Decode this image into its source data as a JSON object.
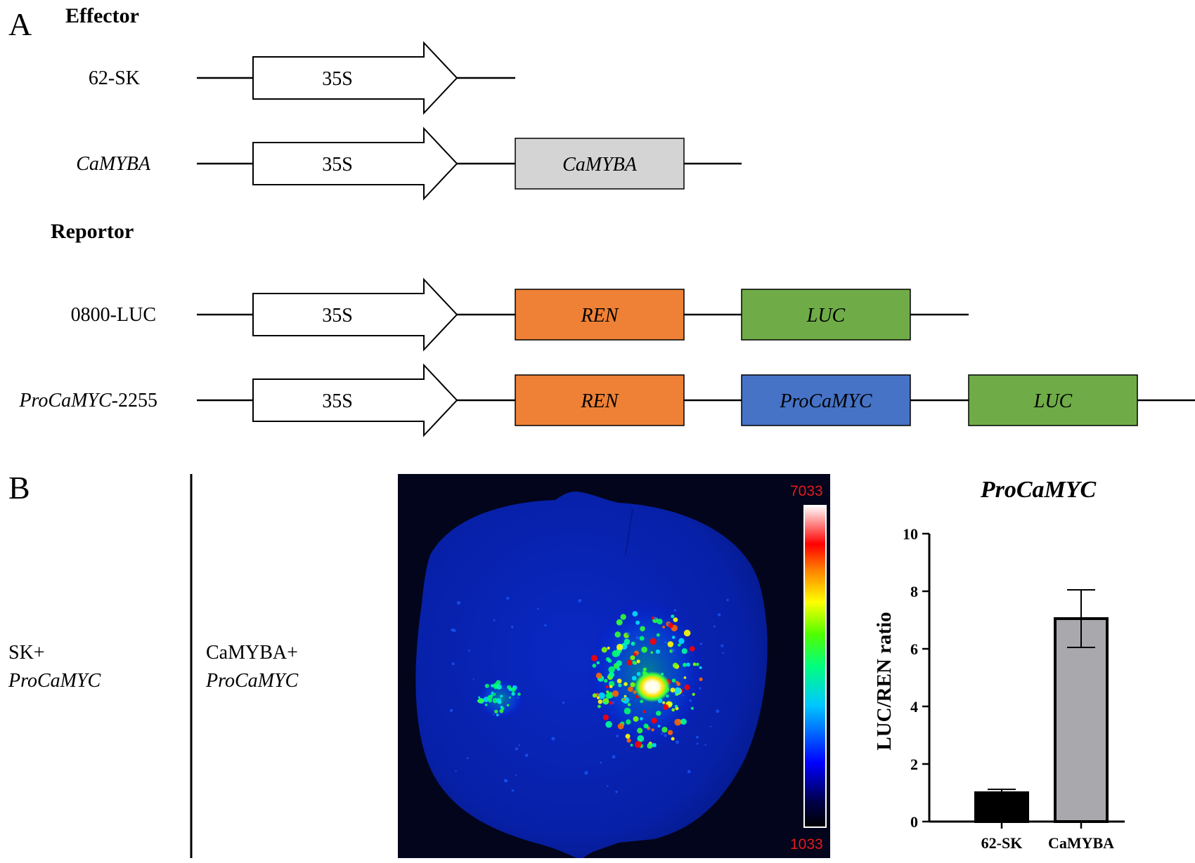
{
  "panel_a": {
    "letter": "A",
    "effector_heading": "Effector",
    "reporter_heading": "Reportor",
    "constructs": [
      {
        "label": "62-SK",
        "label_italic": "",
        "label_suffix": "",
        "promoter": "35S",
        "elements": []
      },
      {
        "label": "",
        "label_italic": "CaMYBA",
        "label_suffix": "",
        "promoter": "35S",
        "elements": [
          {
            "text": "CaMYBA",
            "color": "#d4d4d4"
          }
        ]
      },
      {
        "label": "0800-LUC",
        "label_italic": "",
        "label_suffix": "",
        "promoter": "35S",
        "elements": [
          {
            "text": "REN",
            "color": "#ee8136"
          },
          {
            "text": "LUC",
            "color": "#6fac48"
          }
        ]
      },
      {
        "label": "",
        "label_italic": "ProCaMYC",
        "label_suffix": "-2255",
        "promoter": "35S",
        "elements": [
          {
            "text": "REN",
            "color": "#ee8136"
          },
          {
            "text": "ProCaMYC",
            "color": "#4673c6"
          },
          {
            "text": "LUC",
            "color": "#6fac48"
          }
        ]
      }
    ]
  },
  "panel_b": {
    "letter": "B",
    "left_label_line1": "SK+",
    "left_label_line2": "ProCaMYC",
    "right_label_line1": "CaMYBA+",
    "right_label_line2": "ProCaMYC",
    "scale_max": "7033",
    "scale_min": "1033",
    "scale_label_color": "#e21b1b"
  },
  "chart_data": {
    "type": "bar",
    "title": "ProCaMYC",
    "xlabel": "",
    "ylabel": "LUC/REN ratio",
    "categories": [
      "62-SK",
      "CaMYBA"
    ],
    "values": [
      1.0,
      7.05
    ],
    "errors": [
      0.12,
      1.0
    ],
    "bar_colors": [
      "#000000",
      "#a9a9ad"
    ],
    "ylim": [
      0,
      10
    ],
    "yticks": [
      0,
      2,
      4,
      6,
      8,
      10
    ],
    "grid": false,
    "legend": "none"
  }
}
